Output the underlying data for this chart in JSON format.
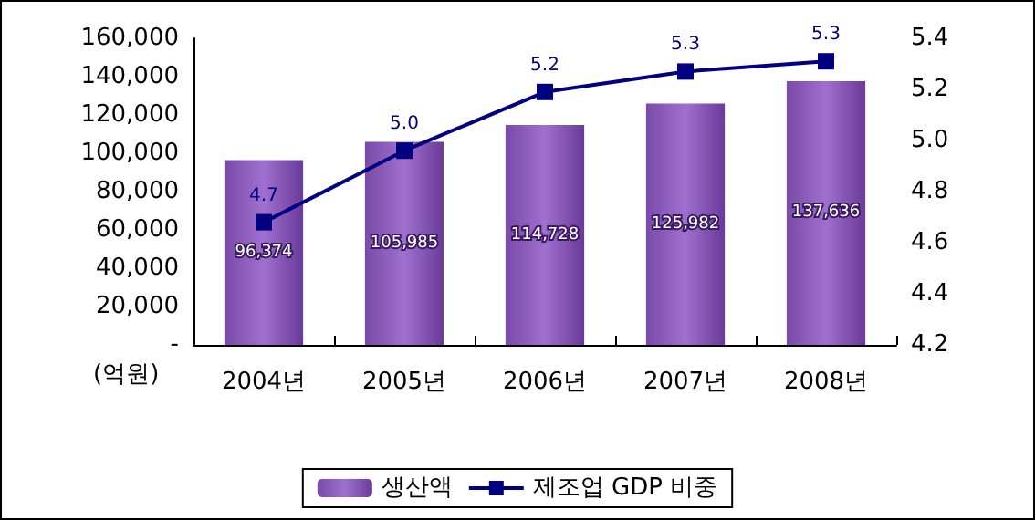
{
  "chart_data": {
    "type": "bar",
    "ylabel": "(억원)",
    "categories": [
      "2004년",
      "2005년",
      "2006년",
      "2007년",
      "2008년"
    ],
    "series": [
      {
        "name": "생산액",
        "color": "#a070d0",
        "values": [
          96374,
          105985,
          114728,
          125982,
          137636
        ],
        "value_labels": [
          "96,374",
          "105,985",
          "114,728",
          "125,982",
          "137,636"
        ]
      },
      {
        "name": "제조업 GDP 비중",
        "type": "line",
        "axis": "y2",
        "color": "#000080",
        "values": [
          4.68,
          4.96,
          5.19,
          5.27,
          5.31
        ],
        "value_labels": [
          "4.7",
          "5.0",
          "5.2",
          "5.3",
          "5.3"
        ]
      }
    ],
    "ylim": [
      0,
      160000
    ],
    "yticks": [
      {
        "value": 0,
        "label": "-"
      },
      {
        "value": 20000,
        "label": "20,000"
      },
      {
        "value": 40000,
        "label": "40,000"
      },
      {
        "value": 60000,
        "label": "60,000"
      },
      {
        "value": 80000,
        "label": "80,000"
      },
      {
        "value": 100000,
        "label": "100,000"
      },
      {
        "value": 120000,
        "label": "120,000"
      },
      {
        "value": 140000,
        "label": "140,000"
      },
      {
        "value": 160000,
        "label": "160,000"
      }
    ],
    "y2lim": [
      4.2,
      5.4
    ],
    "y2ticks": [
      4.2,
      4.4,
      4.6,
      4.8,
      {
        "value": 5,
        "label": "5.0"
      },
      5.2,
      5.4
    ],
    "grid": false,
    "legend": "bottom",
    "marker": "square"
  }
}
